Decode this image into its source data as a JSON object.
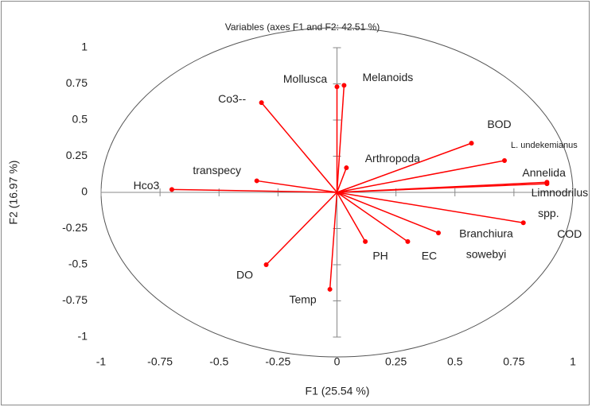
{
  "chart_data": {
    "type": "vectors",
    "title": "Variables (axes F1 and F2: 42.51 %)",
    "x_label": "F1 (25.54 %)",
    "y_label": "F2 (16.97 %)",
    "color": "#ff0000",
    "xlim": [
      -1,
      1
    ],
    "ylim": [
      -1,
      1
    ],
    "xticks": [
      -1,
      -0.75,
      -0.5,
      -0.25,
      0,
      0.25,
      0.5,
      0.75,
      1
    ],
    "yticks": [
      -1,
      -0.75,
      -0.5,
      -0.25,
      0,
      0.25,
      0.5,
      0.75,
      1
    ],
    "points": [
      {
        "label": [
          "Hco3"
        ],
        "x": -0.7,
        "y": 0.02
      },
      {
        "label": [
          "transpecy"
        ],
        "x": -0.34,
        "y": 0.08
      },
      {
        "label": [
          "Co3--"
        ],
        "x": -0.32,
        "y": 0.62
      },
      {
        "label": [
          "Mollusca"
        ],
        "x": 0.0,
        "y": 0.73
      },
      {
        "label": [
          "Melanoids"
        ],
        "x": 0.03,
        "y": 0.74
      },
      {
        "label": [
          "Arthropoda"
        ],
        "x": 0.04,
        "y": 0.17
      },
      {
        "label": [
          "BOD"
        ],
        "x": 0.57,
        "y": 0.34
      },
      {
        "label": [
          "L. undekemianus"
        ],
        "x": 0.71,
        "y": 0.22
      },
      {
        "label": [
          "Annelida"
        ],
        "x": 0.89,
        "y": 0.07
      },
      {
        "label": [
          "Limnodrilus",
          "spp."
        ],
        "x": 0.89,
        "y": 0.06
      },
      {
        "label": [
          "COD"
        ],
        "x": 0.79,
        "y": -0.21
      },
      {
        "label": [
          "Branchiura",
          "sowebyi"
        ],
        "x": 0.43,
        "y": -0.28
      },
      {
        "label": [
          "EC"
        ],
        "x": 0.3,
        "y": -0.34
      },
      {
        "label": [
          "PH"
        ],
        "x": 0.12,
        "y": -0.34
      },
      {
        "label": [
          "DO"
        ],
        "x": -0.3,
        "y": -0.5
      },
      {
        "label": [
          "Temp"
        ],
        "x": -0.03,
        "y": -0.67
      }
    ]
  }
}
